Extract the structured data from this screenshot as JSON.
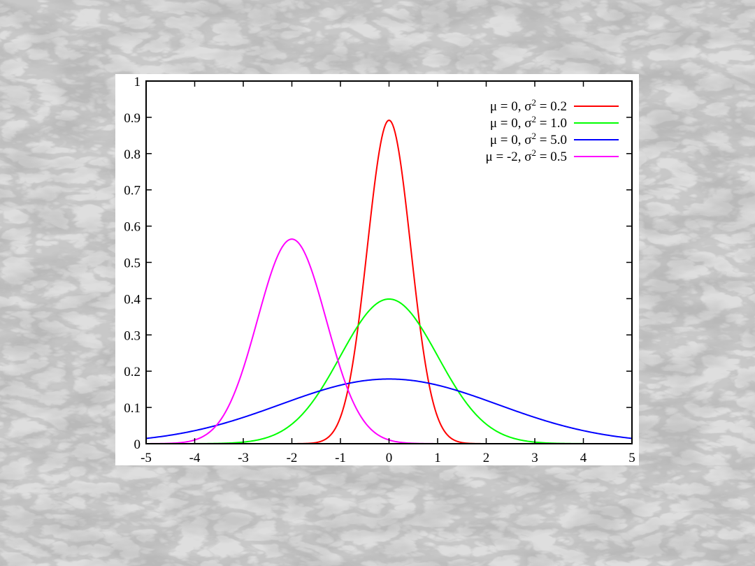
{
  "chart_data": {
    "type": "line",
    "title": "",
    "xlabel": "",
    "ylabel": "",
    "xlim": [
      -5,
      5
    ],
    "ylim": [
      0,
      1
    ],
    "xticks": [
      "-5",
      "-4",
      "-3",
      "-2",
      "-1",
      "0",
      "1",
      "2",
      "3",
      "4",
      "5"
    ],
    "yticks": [
      "0",
      "0.1",
      "0.2",
      "0.3",
      "0.4",
      "0.5",
      "0.6",
      "0.7",
      "0.8",
      "0.9",
      "1"
    ],
    "grid": false,
    "legend_position": "top-right",
    "series": [
      {
        "name": "μ = 0, σ² = 0.2",
        "legend_parts": {
          "mu": "0",
          "sigma2": "0.2"
        },
        "color": "#ff0000",
        "mean": 0,
        "variance": 0.2,
        "x": [
          -5,
          -4,
          -3,
          -2,
          -1.5,
          -1,
          -0.8,
          -0.6,
          -0.4,
          -0.2,
          0,
          0.2,
          0.4,
          0.6,
          0.8,
          1,
          1.5,
          2,
          3,
          4,
          5
        ],
        "y": [
          0,
          0,
          0,
          0,
          0.003,
          0.073,
          0.18,
          0.36,
          0.598,
          0.807,
          0.892,
          0.807,
          0.598,
          0.36,
          0.18,
          0.073,
          0.003,
          0,
          0,
          0,
          0
        ]
      },
      {
        "name": "μ = 0, σ² = 1.0",
        "legend_parts": {
          "mu": "0",
          "sigma2": "1.0"
        },
        "color": "#00ff00",
        "mean": 0,
        "variance": 1.0,
        "x": [
          -5,
          -4,
          -3,
          -2.5,
          -2,
          -1.5,
          -1,
          -0.5,
          0,
          0.5,
          1,
          1.5,
          2,
          2.5,
          3,
          4,
          5
        ],
        "y": [
          0,
          0,
          0.004,
          0.018,
          0.054,
          0.13,
          0.242,
          0.352,
          0.399,
          0.352,
          0.242,
          0.13,
          0.054,
          0.018,
          0.004,
          0,
          0
        ]
      },
      {
        "name": "μ = 0, σ² = 5.0",
        "legend_parts": {
          "mu": "0",
          "sigma2": "5.0"
        },
        "color": "#0000ff",
        "mean": 0,
        "variance": 5.0,
        "x": [
          -5,
          -4,
          -3,
          -2,
          -1,
          0,
          1,
          2,
          3,
          4,
          5
        ],
        "y": [
          0.015,
          0.036,
          0.073,
          0.12,
          0.161,
          0.178,
          0.161,
          0.12,
          0.073,
          0.036,
          0.015
        ]
      },
      {
        "name": "μ = -2, σ² = 0.5",
        "legend_parts": {
          "mu": "-2",
          "sigma2": "0.5"
        },
        "color": "#ff00ff",
        "mean": -2,
        "variance": 0.5,
        "x": [
          -5,
          -4,
          -3.5,
          -3,
          -2.5,
          -2,
          -1.5,
          -1,
          -0.5,
          0,
          1,
          2,
          3,
          4,
          5
        ],
        "y": [
          0,
          0.01,
          0.059,
          0.208,
          0.439,
          0.564,
          0.439,
          0.208,
          0.059,
          0.01,
          0,
          0,
          0,
          0,
          0
        ]
      }
    ]
  }
}
